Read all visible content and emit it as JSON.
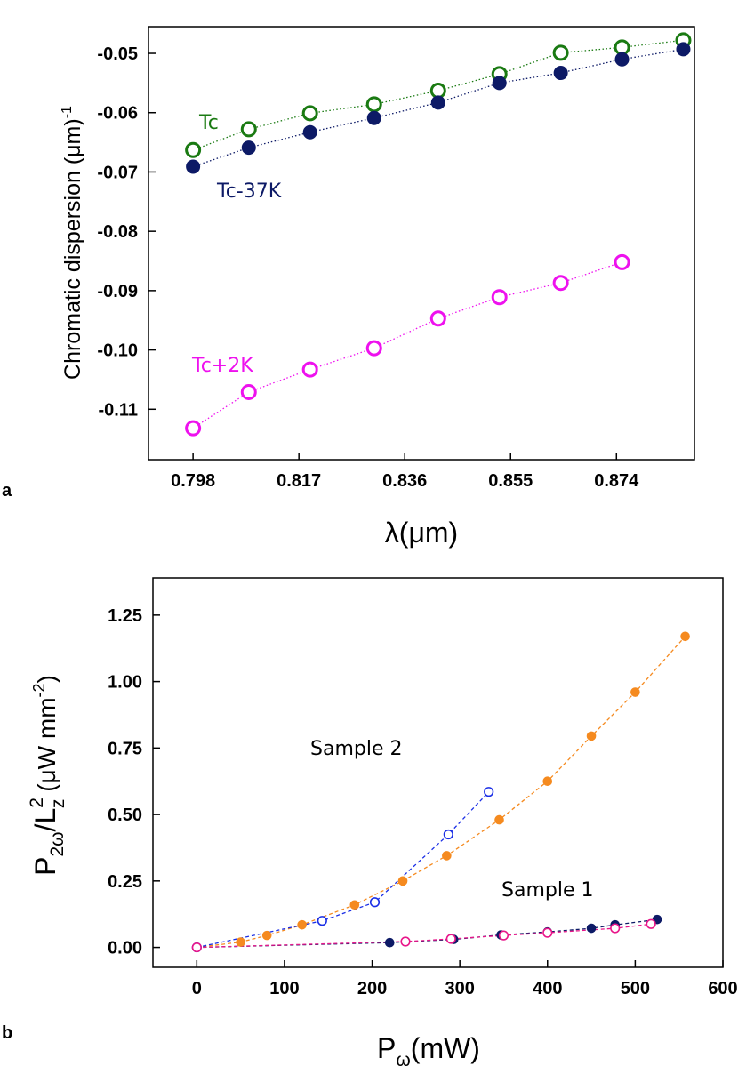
{
  "panel_labels": {
    "a": "a",
    "b": "b"
  },
  "colors": {
    "tc": "#1a7a12",
    "tc37": "#0d1a66",
    "tc2": "#ee11ee",
    "s2_filled": "#f58a1f",
    "s2_open": "#1a2ee6",
    "s1_filled": "#0d1a66",
    "s1_open": "#e8168a"
  },
  "chart_data": [
    {
      "type": "scatter",
      "panel": "a",
      "title": "",
      "xlabel": "λ(μm)",
      "ylabel_main": "Chromatic dispersion (μm)",
      "ylabel_sup": "-1",
      "xlim": [
        0.79,
        0.888
      ],
      "ylim": [
        -0.1185,
        -0.0455
      ],
      "xticks": [
        0.798,
        0.817,
        0.836,
        0.855,
        0.874
      ],
      "xtick_labels": [
        "0.798",
        "0.817",
        "0.836",
        "0.855",
        "0.874"
      ],
      "yticks": [
        -0.05,
        -0.06,
        -0.07,
        -0.08,
        -0.09,
        -0.1,
        -0.11
      ],
      "ytick_labels": [
        "-0.05",
        "-0.06",
        "-0.07",
        "-0.08",
        "-0.09",
        "-0.10",
        "-0.11"
      ],
      "series": [
        {
          "name": "Tc",
          "label": "Tc",
          "marker": "open",
          "color_key": "tc",
          "x": [
            0.798,
            0.808,
            0.819,
            0.8305,
            0.842,
            0.853,
            0.864,
            0.875,
            0.886
          ],
          "y": [
            -0.0663,
            -0.0628,
            -0.0601,
            -0.0586,
            -0.0563,
            -0.0535,
            -0.0499,
            -0.049,
            -0.0478
          ]
        },
        {
          "name": "Tc-37K",
          "label": "Tc-37K",
          "marker": "filled",
          "color_key": "tc37",
          "x": [
            0.798,
            0.808,
            0.819,
            0.8305,
            0.842,
            0.853,
            0.864,
            0.875,
            0.886
          ],
          "y": [
            -0.0691,
            -0.0659,
            -0.0633,
            -0.0609,
            -0.0583,
            -0.055,
            -0.0533,
            -0.051,
            -0.0493
          ]
        },
        {
          "name": "Tc+2K",
          "label": "Tc+2K",
          "marker": "open",
          "color_key": "tc2",
          "x": [
            0.798,
            0.808,
            0.819,
            0.8305,
            0.842,
            0.853,
            0.864,
            0.875
          ],
          "y": [
            -0.1132,
            -0.1071,
            -0.1033,
            -0.0997,
            -0.0947,
            -0.0911,
            -0.0887,
            -0.0852
          ]
        }
      ]
    },
    {
      "type": "scatter",
      "panel": "b",
      "title": "",
      "xlabel_main": "P",
      "xlabel_sub": "ω",
      "xlabel_rest": "(mW)",
      "ylabel_parts": {
        "p": "P",
        "p_sub": "2ω",
        "slash": "/L",
        "l_sup": "2",
        "l_sub": "z",
        "units": " (μW mm",
        "units_sup": "-2",
        "close": ")"
      },
      "xlim": [
        -50,
        600
      ],
      "ylim": [
        -0.075,
        1.39
      ],
      "xticks": [
        0,
        100,
        200,
        300,
        400,
        500,
        600
      ],
      "xtick_labels": [
        "0",
        "100",
        "200",
        "300",
        "400",
        "500",
        "600"
      ],
      "yticks": [
        0.0,
        0.25,
        0.5,
        0.75,
        1.0,
        1.25
      ],
      "ytick_labels": [
        "0.00",
        "0.25",
        "0.50",
        "0.75",
        "1.00",
        "1.25"
      ],
      "annotations": [
        {
          "text": "Sample 2",
          "x": 182,
          "y": 0.725
        },
        {
          "text": "Sample 1",
          "x": 400,
          "y": 0.192
        }
      ],
      "series": [
        {
          "name": "Sample 2 (filled)",
          "marker": "filled",
          "color_key": "s2_filled",
          "x": [
            0,
            50,
            80,
            120,
            180,
            235,
            285,
            345,
            400,
            450,
            500,
            557
          ],
          "y": [
            0.0,
            0.02,
            0.045,
            0.085,
            0.16,
            0.25,
            0.345,
            0.48,
            0.625,
            0.795,
            0.96,
            1.17
          ]
        },
        {
          "name": "Sample 2 (open)",
          "marker": "open",
          "color_key": "s2_open",
          "x": [
            0,
            143,
            203,
            287,
            333
          ],
          "y": [
            0.0,
            0.1,
            0.17,
            0.425,
            0.585
          ]
        },
        {
          "name": "Sample 1 (filled)",
          "marker": "filled",
          "color_key": "s1_filled",
          "x": [
            0,
            220,
            293,
            347,
            400,
            450,
            477,
            525
          ],
          "y": [
            0.0,
            0.018,
            0.03,
            0.047,
            0.058,
            0.072,
            0.085,
            0.105
          ]
        },
        {
          "name": "Sample 1 (open)",
          "marker": "open",
          "color_key": "s1_open",
          "x": [
            0,
            238,
            290,
            350,
            400,
            477,
            518
          ],
          "y": [
            0.0,
            0.022,
            0.032,
            0.045,
            0.055,
            0.072,
            0.088
          ]
        }
      ]
    }
  ]
}
